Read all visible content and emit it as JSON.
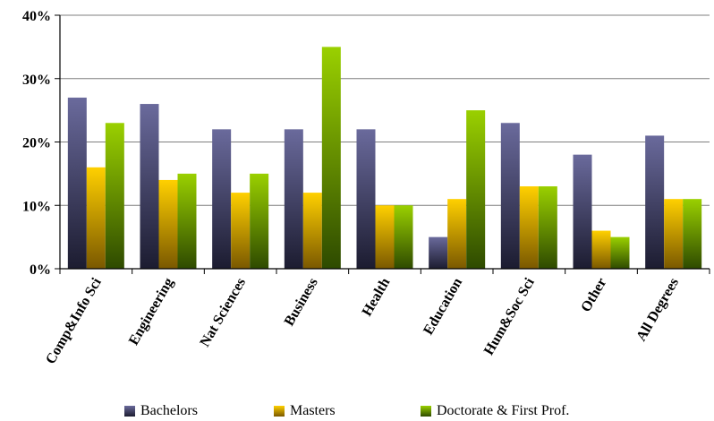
{
  "chart_data": {
    "type": "bar",
    "categories": [
      "Comp&Info Sci",
      "Engineering",
      "Nat Sciences",
      "Business",
      "Health",
      "Education",
      "Hum&Soc Sci",
      "Other",
      "All Degrees"
    ],
    "series": [
      {
        "name": "Bachelors",
        "values": [
          27,
          26,
          22,
          22,
          22,
          5,
          23,
          18,
          21
        ],
        "color_top": "#6a6a9c",
        "color_bottom": "#1c1c30"
      },
      {
        "name": "Masters",
        "values": [
          16,
          14,
          12,
          12,
          10,
          11,
          13,
          6,
          11
        ],
        "color_top": "#ffd000",
        "color_bottom": "#7a5800"
      },
      {
        "name": "Doctorate & First Prof.",
        "values": [
          23,
          15,
          15,
          35,
          10,
          25,
          13,
          5,
          11
        ],
        "color_top": "#9ad000",
        "color_bottom": "#2e4a00"
      }
    ],
    "y_ticks": [
      "0%",
      "10%",
      "20%",
      "30%",
      "40%"
    ],
    "ylim": [
      0,
      40
    ],
    "grid": true,
    "legend_position": "bottom"
  }
}
